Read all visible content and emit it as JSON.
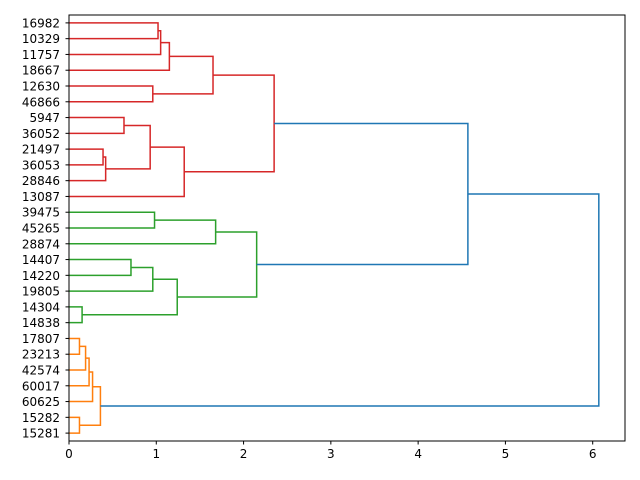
{
  "chart_data": {
    "type": "dendrogram",
    "title": "",
    "xlabel": "",
    "ylabel": "",
    "orientation": "right",
    "xlim": [
      0,
      6.37
    ],
    "xticks": [
      0,
      1,
      2,
      3,
      4,
      5,
      6
    ],
    "grid": false,
    "colors": {
      "r": "#d62728",
      "g": "#2ca02c",
      "o": "#ff7f0e",
      "b": "#1f77b4"
    },
    "leaves": [
      "16982",
      "10329",
      "11757",
      "18667",
      "12630",
      "46866",
      "5947",
      "36052",
      "21497",
      "36053",
      "28846",
      "13087",
      "39475",
      "45265",
      "28874",
      "14407",
      "14220",
      "19805",
      "14304",
      "14838",
      "17807",
      "23213",
      "42574",
      "60017",
      "60625",
      "15282",
      "15281"
    ],
    "merges": [
      [
        0,
        1,
        1.02,
        "r"
      ],
      [
        27,
        2,
        1.05,
        "r"
      ],
      [
        28,
        3,
        1.15,
        "r"
      ],
      [
        4,
        5,
        0.96,
        "r"
      ],
      [
        29,
        30,
        1.65,
        "r"
      ],
      [
        6,
        7,
        0.63,
        "r"
      ],
      [
        8,
        9,
        0.39,
        "r"
      ],
      [
        33,
        10,
        0.42,
        "r"
      ],
      [
        32,
        34,
        0.93,
        "r"
      ],
      [
        35,
        11,
        1.32,
        "r"
      ],
      [
        31,
        36,
        2.35,
        "r"
      ],
      [
        12,
        13,
        0.98,
        "g"
      ],
      [
        38,
        14,
        1.68,
        "g"
      ],
      [
        15,
        16,
        0.71,
        "g"
      ],
      [
        40,
        17,
        0.96,
        "g"
      ],
      [
        18,
        19,
        0.15,
        "g"
      ],
      [
        41,
        42,
        1.24,
        "g"
      ],
      [
        39,
        43,
        2.15,
        "g"
      ],
      [
        20,
        21,
        0.12,
        "o"
      ],
      [
        45,
        22,
        0.19,
        "o"
      ],
      [
        46,
        23,
        0.23,
        "o"
      ],
      [
        47,
        24,
        0.27,
        "o"
      ],
      [
        25,
        26,
        0.12,
        "o"
      ],
      [
        48,
        49,
        0.36,
        "o"
      ],
      [
        37,
        44,
        4.57,
        "b"
      ],
      [
        51,
        50,
        6.07,
        "b"
      ]
    ]
  }
}
